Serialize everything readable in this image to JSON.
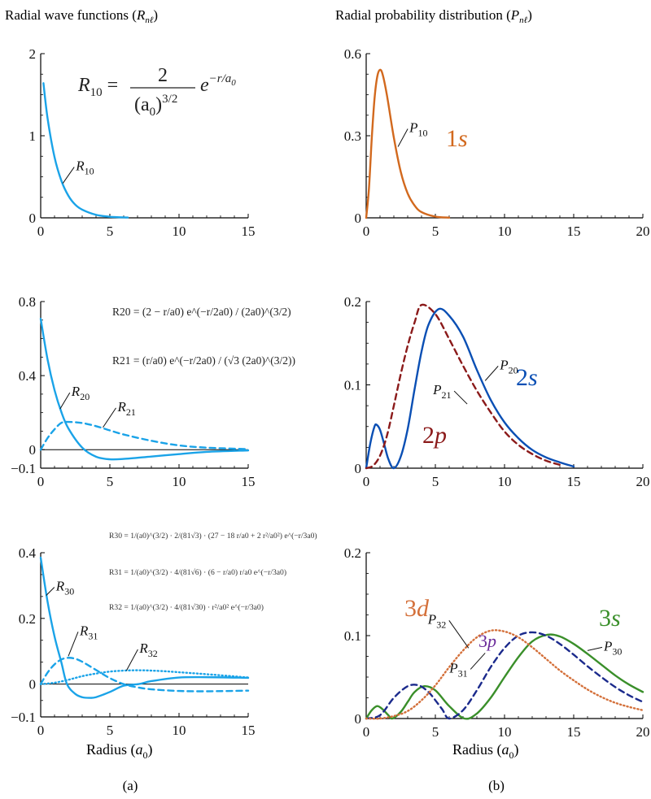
{
  "page": {
    "title_left": "Radial wave functions (",
    "title_left_sym": "R",
    "title_left_sub": "nℓ",
    "title_left_close": ")",
    "title_right": "Radial probability distribution (",
    "title_right_sym": "P",
    "title_right_sub": "nℓ",
    "title_right_close": ")",
    "xlabel_left": "Radius (",
    "xlabel_right": "Radius (",
    "xlabel_sym": "a",
    "xlabel_sub": "0",
    "xlabel_close": ")",
    "caption_a": "(a)",
    "caption_b": "(b)"
  },
  "colors": {
    "axis": "#000000",
    "r_blue": "#1aa3e8",
    "p10_orange": "#d2691e",
    "p2_blue": "#0a4fb4",
    "p21_red": "#8b1a1a",
    "p30_green": "#3a8f2a",
    "p31_navy": "#1b2a8c",
    "p32_orange": "#d4703a",
    "purple": "#6a2a9a"
  },
  "equations": {
    "r10": {
      "lhs": "R",
      "sub": "10",
      "num": "2",
      "den": "(a",
      "den_sub": "0",
      "den_pow": ")3/2",
      "exp": "e",
      "exp_pow": "−r/a",
      "exp_pow_sub": "0"
    },
    "r20": {
      "text": "R20 = (2 − r/a0) e^(−r/2a0) / (2a0)^(3/2)"
    },
    "r21": {
      "text": "R21 = (r/a0) e^(−r/2a0) / (√3 (2a0)^(3/2))"
    },
    "r30": {
      "text": "R30 = 1/(a0)^(3/2) · 2/(81√3) · (27 − 18 r/a0 + 2 r²/a0²) e^(−r/3a0)"
    },
    "r31": {
      "text": "R31 = 1/(a0)^(3/2) · 4/(81√6) · (6 − r/a0) r/a0 e^(−r/3a0)"
    },
    "r32": {
      "text": "R32 = 1/(a0)^(3/2) · 4/(81√30) · r²/a0² e^(−r/3a0)"
    }
  },
  "chart_data": [
    {
      "id": "R1",
      "type": "line",
      "title": "Radial wave functions (Rnℓ)",
      "xlim": [
        0,
        15
      ],
      "ylim": [
        0,
        2
      ],
      "xticks": [
        0,
        5,
        10,
        15
      ],
      "xtick_labels": [
        "0",
        "5",
        "10",
        "15"
      ],
      "yticks": [
        0,
        1,
        2
      ],
      "ytick_labels": [
        "0",
        "1",
        "2"
      ],
      "series": [
        {
          "name": "R10",
          "style": "solid",
          "color": "#1aa3e8",
          "x": [
            0.2,
            0.5,
            1.0,
            1.5,
            2.0,
            2.5,
            3.0,
            4.0,
            5.0,
            6.3
          ],
          "y": [
            1.64,
            1.21,
            0.74,
            0.45,
            0.27,
            0.16,
            0.1,
            0.037,
            0.013,
            0.004
          ]
        }
      ],
      "labels": [
        {
          "text": "R",
          "sub": "10",
          "series": "R10"
        }
      ]
    },
    {
      "id": "P1",
      "type": "line",
      "title": "Radial probability distribution (Pnℓ)",
      "xlim": [
        0,
        20
      ],
      "ylim": [
        0,
        0.6
      ],
      "xticks": [
        0,
        5,
        10,
        15,
        20
      ],
      "xtick_labels": [
        "0",
        "5",
        "10",
        "15",
        "20"
      ],
      "yticks": [
        0,
        0.3,
        0.6
      ],
      "ytick_labels": [
        "0",
        "0.3",
        "0.6"
      ],
      "series": [
        {
          "name": "P10",
          "style": "solid",
          "color": "#d2691e",
          "x": [
            0.0,
            0.2,
            0.4,
            0.6,
            0.8,
            1.0,
            1.2,
            1.5,
            2.0,
            2.5,
            3.0,
            3.5,
            4.0,
            5.0,
            6.0
          ],
          "y": [
            0.0,
            0.107,
            0.288,
            0.434,
            0.516,
            0.541,
            0.522,
            0.448,
            0.293,
            0.168,
            0.089,
            0.045,
            0.021,
            0.0045,
            0.0009
          ]
        }
      ],
      "labels": [
        {
          "text": "P",
          "sub": "10",
          "series": "P10"
        },
        {
          "text": "1s"
        }
      ]
    },
    {
      "id": "R2",
      "type": "line",
      "xlim": [
        0,
        15
      ],
      "ylim": [
        -0.1,
        0.8
      ],
      "xticks": [
        0,
        5,
        10,
        15
      ],
      "xtick_labels": [
        "0",
        "5",
        "10",
        "15"
      ],
      "yticks": [
        -0.1,
        0,
        0.4,
        0.8
      ],
      "ytick_labels": [
        "−0.1",
        "0",
        "0.4",
        "0.8"
      ],
      "series": [
        {
          "name": "R20",
          "style": "solid",
          "color": "#1aa3e8",
          "x": [
            0.0,
            0.5,
            1.0,
            1.5,
            2.0,
            3.0,
            4.0,
            5.0,
            6.0,
            8.0,
            10.0,
            12.0,
            15.0
          ],
          "y": [
            0.707,
            0.486,
            0.322,
            0.202,
            0.115,
            0.011,
            -0.038,
            -0.052,
            -0.05,
            -0.037,
            -0.024,
            -0.012,
            -0.004
          ]
        },
        {
          "name": "R21",
          "style": "dashed",
          "color": "#1aa3e8",
          "x": [
            0.0,
            0.5,
            1.0,
            1.5,
            2.0,
            3.0,
            4.0,
            5.0,
            6.0,
            8.0,
            10.0,
            12.0,
            15.0
          ],
          "y": [
            0.0,
            0.063,
            0.11,
            0.145,
            0.15,
            0.144,
            0.127,
            0.104,
            0.082,
            0.048,
            0.023,
            0.011,
            0.003
          ]
        }
      ],
      "labels": [
        {
          "text": "R",
          "sub": "20",
          "series": "R20"
        },
        {
          "text": "R",
          "sub": "21",
          "series": "R21"
        }
      ]
    },
    {
      "id": "P2",
      "type": "line",
      "xlim": [
        0,
        20
      ],
      "ylim": [
        0,
        0.2
      ],
      "xticks": [
        0,
        5,
        10,
        15,
        20
      ],
      "xtick_labels": [
        "0",
        "5",
        "10",
        "15",
        "20"
      ],
      "yticks": [
        0,
        0.1,
        0.2
      ],
      "ytick_labels": [
        "0",
        "0.1",
        "0.2"
      ],
      "series": [
        {
          "name": "P20",
          "style": "solid",
          "color": "#0a4fb4",
          "x": [
            0.0,
            0.3,
            0.6,
            0.76,
            1.0,
            1.3,
            1.6,
            2.0,
            2.5,
            3.0,
            3.5,
            4.0,
            4.5,
            5.24,
            6.0,
            7.0,
            8.0,
            9.0,
            10.0,
            11.0,
            12.0,
            13.0,
            14.0,
            15.0
          ],
          "y": [
            0.0,
            0.03,
            0.05,
            0.052,
            0.046,
            0.029,
            0.011,
            0.0,
            0.014,
            0.047,
            0.095,
            0.14,
            0.172,
            0.191,
            0.183,
            0.158,
            0.118,
            0.082,
            0.055,
            0.036,
            0.022,
            0.013,
            0.007,
            0.002
          ]
        },
        {
          "name": "P21",
          "style": "dashed",
          "color": "#8b1a1a",
          "x": [
            0.0,
            0.5,
            1.0,
            1.5,
            2.0,
            2.5,
            3.0,
            3.5,
            4.0,
            5.0,
            6.0,
            7.0,
            8.0,
            9.0,
            10.0,
            11.0,
            12.0,
            13.0,
            14.0
          ],
          "y": [
            0.0,
            0.003,
            0.015,
            0.039,
            0.075,
            0.113,
            0.147,
            0.175,
            0.196,
            0.185,
            0.155,
            0.123,
            0.093,
            0.067,
            0.044,
            0.028,
            0.017,
            0.009,
            0.004
          ]
        }
      ],
      "labels": [
        {
          "text": "P",
          "sub": "20",
          "series": "P20"
        },
        {
          "text": "P",
          "sub": "21",
          "series": "P21"
        },
        {
          "text": "2s"
        },
        {
          "text": "2p"
        }
      ]
    },
    {
      "id": "R3",
      "type": "line",
      "xlim": [
        0,
        15
      ],
      "ylim": [
        -0.1,
        0.4
      ],
      "xticks": [
        0,
        5,
        10,
        15
      ],
      "xtick_labels": [
        "0",
        "5",
        "10",
        "15"
      ],
      "yticks": [
        -0.1,
        0,
        0.2,
        0.4
      ],
      "ytick_labels": [
        "−0.1",
        "0",
        "0.2",
        "0.4"
      ],
      "series": [
        {
          "name": "R30",
          "style": "solid",
          "color": "#1aa3e8",
          "x": [
            0.0,
            0.5,
            1.0,
            1.5,
            1.9,
            2.5,
            3.0,
            3.5,
            4.0,
            5.0,
            6.0,
            7.1,
            8.0,
            10.0,
            12.0,
            15.0
          ],
          "y": [
            0.385,
            0.25,
            0.145,
            0.065,
            0.0,
            -0.03,
            -0.04,
            -0.042,
            -0.04,
            -0.024,
            -0.005,
            0.0,
            0.009,
            0.02,
            0.021,
            0.019
          ]
        },
        {
          "name": "R31",
          "style": "dashed",
          "color": "#1aa3e8",
          "x": [
            0.0,
            0.5,
            1.0,
            1.5,
            2.0,
            2.5,
            3.0,
            4.0,
            5.0,
            6.0,
            7.0,
            8.0,
            10.0,
            12.0,
            15.0
          ],
          "y": [
            0.0,
            0.035,
            0.06,
            0.075,
            0.08,
            0.077,
            0.068,
            0.043,
            0.018,
            0.0,
            -0.01,
            -0.016,
            -0.021,
            -0.022,
            -0.02
          ]
        },
        {
          "name": "R32",
          "style": "dotted",
          "color": "#1aa3e8",
          "x": [
            0.0,
            1.0,
            2.0,
            3.0,
            4.0,
            5.0,
            6.0,
            7.0,
            8.0,
            9.0,
            10.0,
            12.0,
            15.0
          ],
          "y": [
            0.0,
            0.004,
            0.013,
            0.024,
            0.032,
            0.038,
            0.041,
            0.042,
            0.041,
            0.039,
            0.036,
            0.03,
            0.02
          ]
        }
      ],
      "labels": [
        {
          "text": "R",
          "sub": "30",
          "series": "R30"
        },
        {
          "text": "R",
          "sub": "31",
          "series": "R31"
        },
        {
          "text": "R",
          "sub": "32",
          "series": "R32"
        }
      ]
    },
    {
      "id": "P3",
      "type": "line",
      "xlim": [
        0,
        20
      ],
      "ylim": [
        0,
        0.2
      ],
      "xticks": [
        0,
        5,
        10,
        15,
        20
      ],
      "xtick_labels": [
        "0",
        "5",
        "10",
        "15",
        "20"
      ],
      "yticks": [
        0,
        0.1,
        0.2
      ],
      "ytick_labels": [
        "0",
        "0.1",
        "0.2"
      ],
      "series": [
        {
          "name": "P30",
          "style": "solid",
          "color": "#3a8f2a",
          "x": [
            0.0,
            0.4,
            0.8,
            1.2,
            1.6,
            1.9,
            2.5,
            3.0,
            3.5,
            4.2,
            5.0,
            6.0,
            7.1,
            8.0,
            9.0,
            10.0,
            11.0,
            12.0,
            13.1,
            14.0,
            15.0,
            16.0,
            17.0,
            18.0,
            19.0,
            20.0
          ],
          "y": [
            0.0,
            0.01,
            0.015,
            0.011,
            0.004,
            0.0,
            0.008,
            0.02,
            0.032,
            0.039,
            0.034,
            0.015,
            0.0,
            0.006,
            0.025,
            0.05,
            0.074,
            0.093,
            0.101,
            0.099,
            0.09,
            0.078,
            0.065,
            0.052,
            0.041,
            0.032
          ]
        },
        {
          "name": "P31",
          "style": "dashed",
          "color": "#1b2a8c",
          "x": [
            0.0,
            1.0,
            2.0,
            3.0,
            3.8,
            4.5,
            5.0,
            5.5,
            6.0,
            7.0,
            8.0,
            9.0,
            10.0,
            11.0,
            12.0,
            13.0,
            14.0,
            15.0,
            16.0,
            17.0,
            18.0,
            19.0,
            20.0
          ],
          "y": [
            0.0,
            0.004,
            0.025,
            0.039,
            0.04,
            0.032,
            0.022,
            0.011,
            0.0,
            0.01,
            0.034,
            0.062,
            0.085,
            0.1,
            0.104,
            0.1,
            0.09,
            0.077,
            0.063,
            0.05,
            0.038,
            0.028,
            0.02
          ]
        },
        {
          "name": "P32",
          "style": "dotted",
          "color": "#d4703a",
          "x": [
            0.0,
            1.0,
            2.0,
            3.0,
            4.0,
            5.0,
            6.0,
            7.0,
            8.0,
            9.0,
            10.0,
            11.0,
            12.0,
            13.0,
            14.0,
            15.0,
            16.0,
            17.0,
            18.0,
            19.0,
            20.0
          ],
          "y": [
            0.0,
            0.0,
            0.003,
            0.009,
            0.022,
            0.04,
            0.062,
            0.082,
            0.098,
            0.106,
            0.105,
            0.098,
            0.086,
            0.072,
            0.058,
            0.046,
            0.035,
            0.026,
            0.019,
            0.014,
            0.01
          ]
        }
      ],
      "labels": [
        {
          "text": "P",
          "sub": "30",
          "series": "P30"
        },
        {
          "text": "P",
          "sub": "31",
          "series": "P31"
        },
        {
          "text": "P",
          "sub": "32",
          "series": "P32"
        },
        {
          "text": "3s"
        },
        {
          "text": "3p"
        },
        {
          "text": "3d"
        }
      ]
    }
  ]
}
